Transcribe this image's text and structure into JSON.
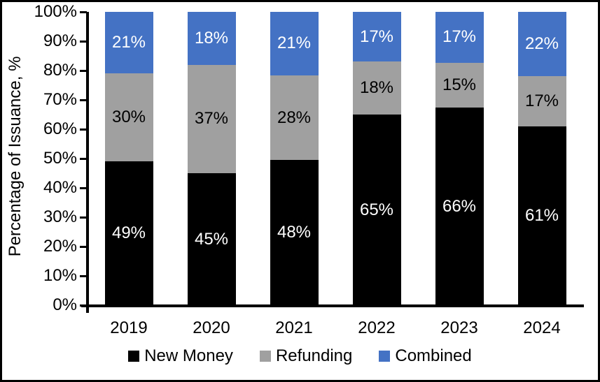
{
  "chart_data": {
    "type": "bar",
    "stacked": true,
    "title": "",
    "xlabel": "",
    "ylabel": "Percentage of Issuance, %",
    "ylim": [
      0,
      100
    ],
    "grid": false,
    "legend_position": "bottom",
    "data_label_suffix": "%",
    "y_tick_labels": [
      "0%",
      "10%",
      "20%",
      "30%",
      "40%",
      "50%",
      "60%",
      "70%",
      "80%",
      "90%",
      "100%"
    ],
    "y_tick_values": [
      0,
      10,
      20,
      30,
      40,
      50,
      60,
      70,
      80,
      90,
      100
    ],
    "categories": [
      "2019",
      "2020",
      "2021",
      "2022",
      "2023",
      "2024"
    ],
    "series": [
      {
        "name": "New Money",
        "color": "#000000",
        "label_color": "#FFFFFF",
        "values": [
          49,
          45,
          48,
          65,
          66,
          61
        ]
      },
      {
        "name": "Refunding",
        "color": "#A0A0A0",
        "label_color": "#000000",
        "values": [
          30,
          37,
          28,
          18,
          15,
          17
        ]
      },
      {
        "name": "Combined",
        "color": "#4472C4",
        "label_color": "#FFFFFF",
        "values": [
          21,
          18,
          21,
          17,
          17,
          22
        ]
      }
    ]
  },
  "colors": {
    "axis": "#000000",
    "background": "#FFFFFF",
    "frame_border": "#000000"
  }
}
